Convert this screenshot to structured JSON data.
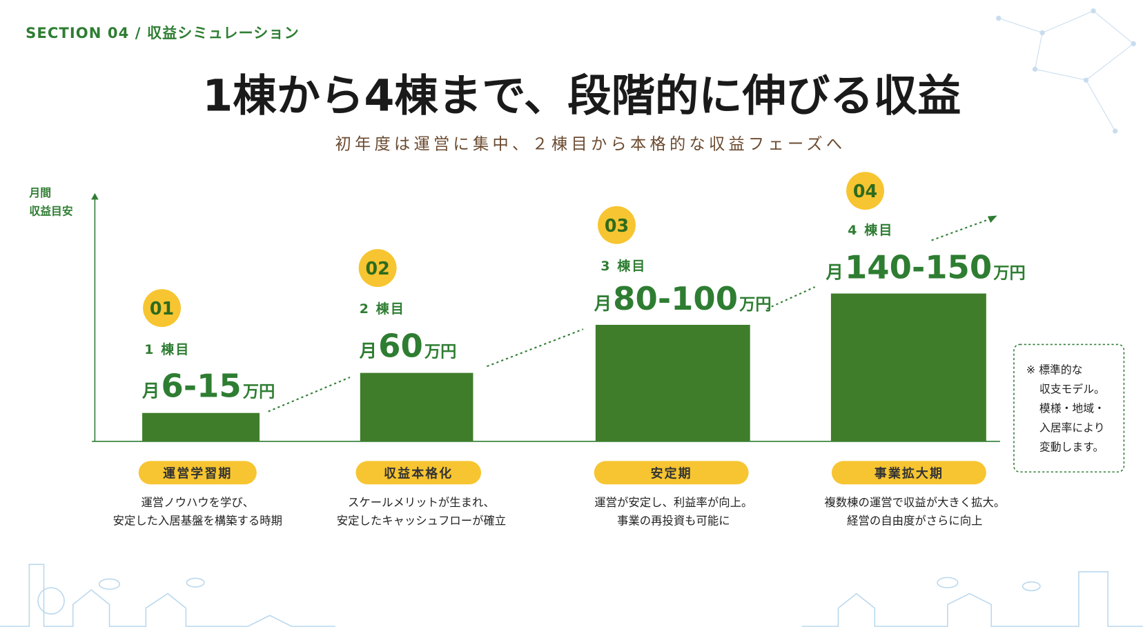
{
  "section": "SECTION 04 / 収益シミュレーション",
  "title": "1棟から4棟まで、段階的に伸びる収益",
  "subtitle": "初年度は運営に集中、２棟目から本格的な収益フェーズへ",
  "axis_label": [
    "月間",
    "収益目安"
  ],
  "stages": [
    {
      "number": "01",
      "count": "1 棟目",
      "prefix": "月",
      "amount": "6-15",
      "unit": "万円",
      "phase": "運営学習期",
      "description": [
        "運営ノウハウを学び、",
        "安定した入居基盤を構築する時期"
      ]
    },
    {
      "number": "02",
      "count": "2 棟目",
      "prefix": "月",
      "amount": "60",
      "unit": "万円",
      "phase": "収益本格化",
      "description": [
        "スケールメリットが生まれ、",
        "安定したキャッシュフローが確立"
      ]
    },
    {
      "number": "03",
      "count": "3 棟目",
      "prefix": "月",
      "amount": "80-100",
      "unit": "万円",
      "phase": "安定期",
      "description": [
        "運営が安定し、利益率が向上。",
        "事業の再投資も可能に"
      ]
    },
    {
      "number": "04",
      "count": "4 棟目",
      "prefix": "月",
      "amount": "140-150",
      "unit": "万円",
      "phase": "事業拡大期",
      "description": [
        "複数棟の運営で収益が大きく拡大。",
        "経営の自由度がさらに向上"
      ]
    }
  ],
  "note": [
    "※ 標準的な",
    "収支モデル。",
    "模様・地域・",
    "入居率により",
    "変動します。"
  ]
}
